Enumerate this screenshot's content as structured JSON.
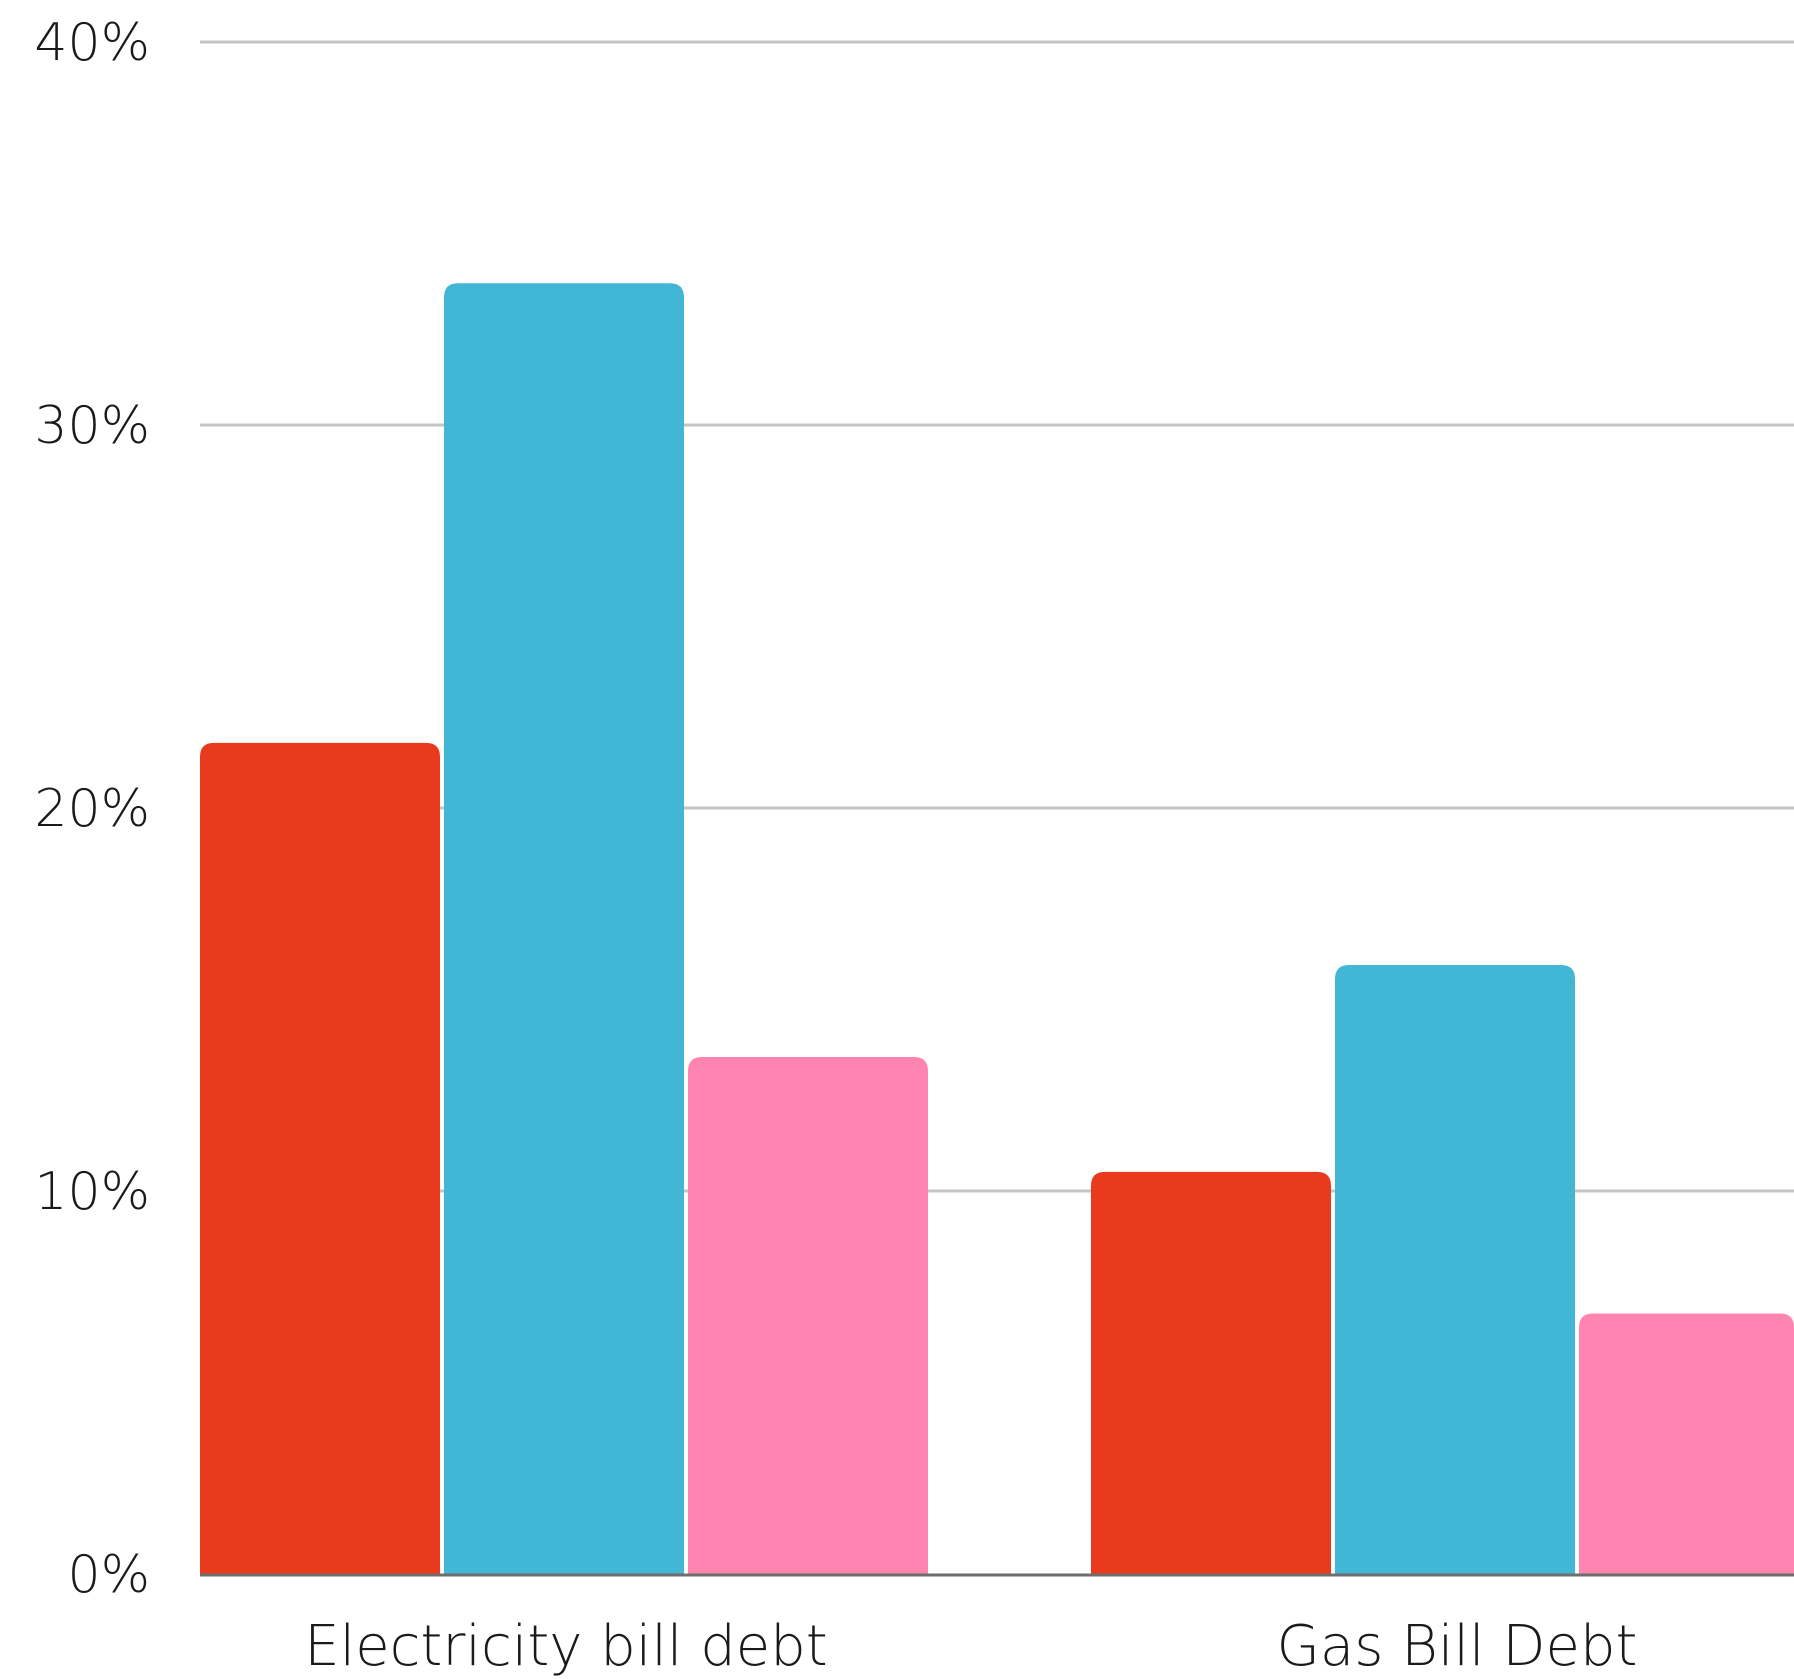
{
  "chart_data": {
    "type": "bar",
    "categories": [
      "Electricity bill debt",
      "Gas Bill Debt"
    ],
    "series": [
      {
        "values": [
          21.7,
          10.5
        ],
        "color": "#EA3A1E"
      },
      {
        "values": [
          33.7,
          15.9
        ],
        "color": "#42B6D5"
      },
      {
        "values": [
          13.5,
          6.8
        ],
        "color": "#FF85B0"
      }
    ],
    "ylim": [
      0,
      40
    ],
    "yticks": [
      0,
      10,
      20,
      30,
      40
    ],
    "ytick_labels": [
      "0%",
      "10%",
      "20%",
      "30%",
      "40%"
    ],
    "grid": true,
    "xlabel": "",
    "ylabel": "",
    "title": ""
  }
}
